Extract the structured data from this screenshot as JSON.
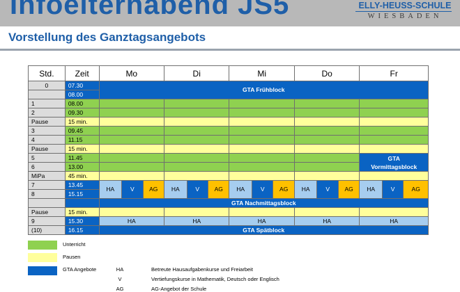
{
  "header": {
    "title": "Infoelternabend JS5",
    "school_name": "ELLY-HEUSS-SCHULE",
    "school_city": "WIESBADEN",
    "subtitle": "Vorstellung des Ganztagsangebots"
  },
  "colors": {
    "gta_blue": "#0a63c3",
    "unterricht_green": "#8fd150",
    "pausen_yellow": "#ffff9c",
    "ha_light_blue": "#a6cdef",
    "ag_gold": "#ffc000"
  },
  "table": {
    "headers": [
      "Std.",
      "Zeit",
      "Mo",
      "Di",
      "Mi",
      "Do",
      "Fr"
    ],
    "rows": [
      {
        "std": "0",
        "zeit": "07.30"
      },
      {
        "std": "",
        "zeit": "08.00"
      },
      {
        "std": "1",
        "zeit": "08.00"
      },
      {
        "std": "2",
        "zeit": "09.30"
      },
      {
        "std": "Pause",
        "zeit": "15 min."
      },
      {
        "std": "3",
        "zeit": "09.45"
      },
      {
        "std": "4",
        "zeit": "11.15"
      },
      {
        "std": "Pause",
        "zeit": "15 min."
      },
      {
        "std": "5",
        "zeit": "11.45"
      },
      {
        "std": "6",
        "zeit": "13.00"
      },
      {
        "std": "MiPa",
        "zeit": "45 min."
      },
      {
        "std": "7",
        "zeit": "13.45"
      },
      {
        "std": "8",
        "zeit": "15.15"
      },
      {
        "std": "Pause",
        "zeit": "15 min."
      },
      {
        "std": "9",
        "zeit": "15.30"
      },
      {
        "std": "(10)",
        "zeit": "16.15"
      }
    ],
    "gta_fruehblock": "GTA Frühblock",
    "gta_vormittag_line1": "GTA",
    "gta_vormittag_line2": "Vormittagsblock",
    "gta_nachmittag": "GTA Nachmittagsblock",
    "gta_spaetblock": "GTA Spätblock",
    "sub_ha": "HA",
    "sub_v": "V",
    "sub_ag": "AG"
  },
  "legend": {
    "items": [
      {
        "label": "Unterricht"
      },
      {
        "label": "Pausen"
      },
      {
        "label": "GTA Angebote"
      }
    ],
    "abbreviations": [
      {
        "abbr": "HA",
        "desc": "Betreute Hausaufgabenkurse und Freiarbeit"
      },
      {
        "abbr": "V",
        "desc": "Vertiefungskurse in Mathematik, Deutsch oder Englisch"
      },
      {
        "abbr": "AG",
        "desc": "AG-Angebot der Schule"
      }
    ]
  }
}
